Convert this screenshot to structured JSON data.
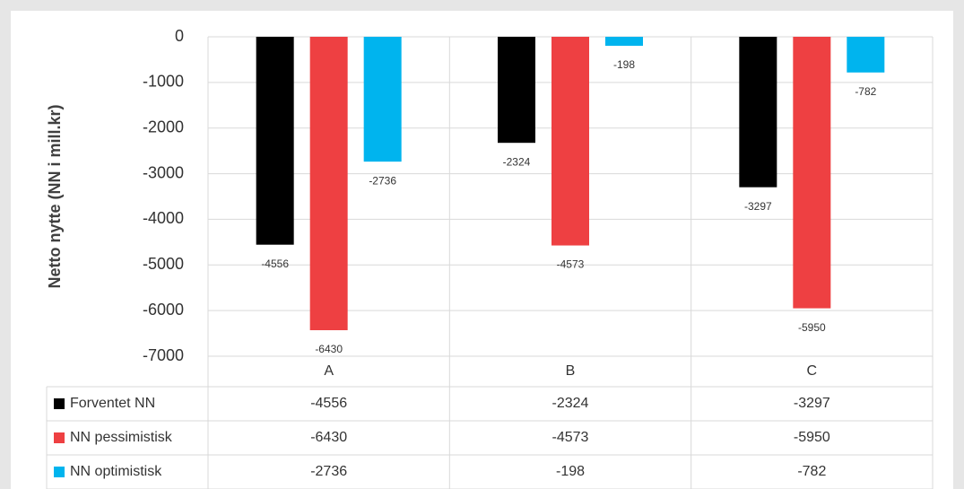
{
  "chart_data": {
    "type": "bar",
    "y_axis_label": "Netto nytte (NN i mill.kr)",
    "categories": [
      "A",
      "B",
      "C"
    ],
    "series": [
      {
        "name": "Forventet NN",
        "color": "#000000",
        "values": [
          -4556,
          -2324,
          -3297
        ]
      },
      {
        "name": "NN pessimistisk",
        "color": "#ee4042",
        "values": [
          -6430,
          -4573,
          -5950
        ]
      },
      {
        "name": "NN optimistisk",
        "color": "#00b4ee",
        "values": [
          -2736,
          -198,
          -782
        ]
      }
    ],
    "ylim": [
      -7000,
      0
    ],
    "yticks": [
      0,
      -1000,
      -2000,
      -3000,
      -4000,
      -5000,
      -6000,
      -7000
    ],
    "grid": true,
    "data_table": true
  }
}
